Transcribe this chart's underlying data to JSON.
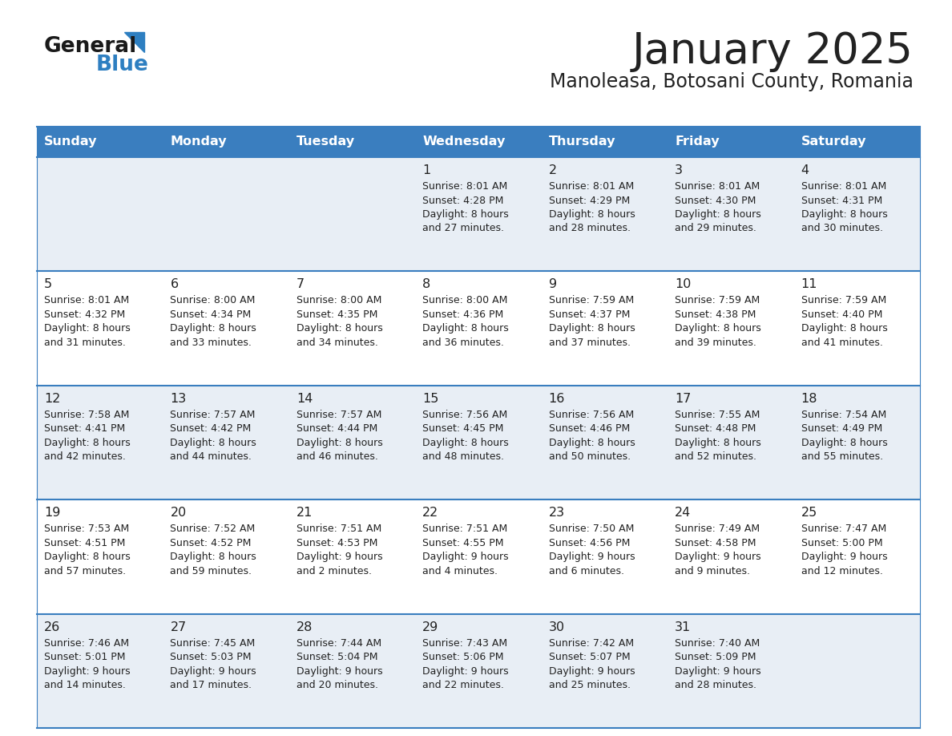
{
  "title": "January 2025",
  "subtitle": "Manoleasa, Botosani County, Romania",
  "header_bg_color": "#3a7ebf",
  "header_text_color": "#ffffff",
  "row_bg_even": "#e8eef5",
  "row_bg_odd": "#ffffff",
  "border_color": "#3a7ebf",
  "day_headers": [
    "Sunday",
    "Monday",
    "Tuesday",
    "Wednesday",
    "Thursday",
    "Friday",
    "Saturday"
  ],
  "title_color": "#222222",
  "subtitle_color": "#222222",
  "day_num_color": "#222222",
  "info_color": "#222222",
  "days": [
    {
      "row": 0,
      "col": 0,
      "num": "",
      "sunrise": "",
      "sunset": "",
      "daylight": ""
    },
    {
      "row": 0,
      "col": 1,
      "num": "",
      "sunrise": "",
      "sunset": "",
      "daylight": ""
    },
    {
      "row": 0,
      "col": 2,
      "num": "",
      "sunrise": "",
      "sunset": "",
      "daylight": ""
    },
    {
      "row": 0,
      "col": 3,
      "num": "1",
      "sunrise": "Sunrise: 8:01 AM",
      "sunset": "Sunset: 4:28 PM",
      "daylight": "Daylight: 8 hours\nand 27 minutes."
    },
    {
      "row": 0,
      "col": 4,
      "num": "2",
      "sunrise": "Sunrise: 8:01 AM",
      "sunset": "Sunset: 4:29 PM",
      "daylight": "Daylight: 8 hours\nand 28 minutes."
    },
    {
      "row": 0,
      "col": 5,
      "num": "3",
      "sunrise": "Sunrise: 8:01 AM",
      "sunset": "Sunset: 4:30 PM",
      "daylight": "Daylight: 8 hours\nand 29 minutes."
    },
    {
      "row": 0,
      "col": 6,
      "num": "4",
      "sunrise": "Sunrise: 8:01 AM",
      "sunset": "Sunset: 4:31 PM",
      "daylight": "Daylight: 8 hours\nand 30 minutes."
    },
    {
      "row": 1,
      "col": 0,
      "num": "5",
      "sunrise": "Sunrise: 8:01 AM",
      "sunset": "Sunset: 4:32 PM",
      "daylight": "Daylight: 8 hours\nand 31 minutes."
    },
    {
      "row": 1,
      "col": 1,
      "num": "6",
      "sunrise": "Sunrise: 8:00 AM",
      "sunset": "Sunset: 4:34 PM",
      "daylight": "Daylight: 8 hours\nand 33 minutes."
    },
    {
      "row": 1,
      "col": 2,
      "num": "7",
      "sunrise": "Sunrise: 8:00 AM",
      "sunset": "Sunset: 4:35 PM",
      "daylight": "Daylight: 8 hours\nand 34 minutes."
    },
    {
      "row": 1,
      "col": 3,
      "num": "8",
      "sunrise": "Sunrise: 8:00 AM",
      "sunset": "Sunset: 4:36 PM",
      "daylight": "Daylight: 8 hours\nand 36 minutes."
    },
    {
      "row": 1,
      "col": 4,
      "num": "9",
      "sunrise": "Sunrise: 7:59 AM",
      "sunset": "Sunset: 4:37 PM",
      "daylight": "Daylight: 8 hours\nand 37 minutes."
    },
    {
      "row": 1,
      "col": 5,
      "num": "10",
      "sunrise": "Sunrise: 7:59 AM",
      "sunset": "Sunset: 4:38 PM",
      "daylight": "Daylight: 8 hours\nand 39 minutes."
    },
    {
      "row": 1,
      "col": 6,
      "num": "11",
      "sunrise": "Sunrise: 7:59 AM",
      "sunset": "Sunset: 4:40 PM",
      "daylight": "Daylight: 8 hours\nand 41 minutes."
    },
    {
      "row": 2,
      "col": 0,
      "num": "12",
      "sunrise": "Sunrise: 7:58 AM",
      "sunset": "Sunset: 4:41 PM",
      "daylight": "Daylight: 8 hours\nand 42 minutes."
    },
    {
      "row": 2,
      "col": 1,
      "num": "13",
      "sunrise": "Sunrise: 7:57 AM",
      "sunset": "Sunset: 4:42 PM",
      "daylight": "Daylight: 8 hours\nand 44 minutes."
    },
    {
      "row": 2,
      "col": 2,
      "num": "14",
      "sunrise": "Sunrise: 7:57 AM",
      "sunset": "Sunset: 4:44 PM",
      "daylight": "Daylight: 8 hours\nand 46 minutes."
    },
    {
      "row": 2,
      "col": 3,
      "num": "15",
      "sunrise": "Sunrise: 7:56 AM",
      "sunset": "Sunset: 4:45 PM",
      "daylight": "Daylight: 8 hours\nand 48 minutes."
    },
    {
      "row": 2,
      "col": 4,
      "num": "16",
      "sunrise": "Sunrise: 7:56 AM",
      "sunset": "Sunset: 4:46 PM",
      "daylight": "Daylight: 8 hours\nand 50 minutes."
    },
    {
      "row": 2,
      "col": 5,
      "num": "17",
      "sunrise": "Sunrise: 7:55 AM",
      "sunset": "Sunset: 4:48 PM",
      "daylight": "Daylight: 8 hours\nand 52 minutes."
    },
    {
      "row": 2,
      "col": 6,
      "num": "18",
      "sunrise": "Sunrise: 7:54 AM",
      "sunset": "Sunset: 4:49 PM",
      "daylight": "Daylight: 8 hours\nand 55 minutes."
    },
    {
      "row": 3,
      "col": 0,
      "num": "19",
      "sunrise": "Sunrise: 7:53 AM",
      "sunset": "Sunset: 4:51 PM",
      "daylight": "Daylight: 8 hours\nand 57 minutes."
    },
    {
      "row": 3,
      "col": 1,
      "num": "20",
      "sunrise": "Sunrise: 7:52 AM",
      "sunset": "Sunset: 4:52 PM",
      "daylight": "Daylight: 8 hours\nand 59 minutes."
    },
    {
      "row": 3,
      "col": 2,
      "num": "21",
      "sunrise": "Sunrise: 7:51 AM",
      "sunset": "Sunset: 4:53 PM",
      "daylight": "Daylight: 9 hours\nand 2 minutes."
    },
    {
      "row": 3,
      "col": 3,
      "num": "22",
      "sunrise": "Sunrise: 7:51 AM",
      "sunset": "Sunset: 4:55 PM",
      "daylight": "Daylight: 9 hours\nand 4 minutes."
    },
    {
      "row": 3,
      "col": 4,
      "num": "23",
      "sunrise": "Sunrise: 7:50 AM",
      "sunset": "Sunset: 4:56 PM",
      "daylight": "Daylight: 9 hours\nand 6 minutes."
    },
    {
      "row": 3,
      "col": 5,
      "num": "24",
      "sunrise": "Sunrise: 7:49 AM",
      "sunset": "Sunset: 4:58 PM",
      "daylight": "Daylight: 9 hours\nand 9 minutes."
    },
    {
      "row": 3,
      "col": 6,
      "num": "25",
      "sunrise": "Sunrise: 7:47 AM",
      "sunset": "Sunset: 5:00 PM",
      "daylight": "Daylight: 9 hours\nand 12 minutes."
    },
    {
      "row": 4,
      "col": 0,
      "num": "26",
      "sunrise": "Sunrise: 7:46 AM",
      "sunset": "Sunset: 5:01 PM",
      "daylight": "Daylight: 9 hours\nand 14 minutes."
    },
    {
      "row": 4,
      "col": 1,
      "num": "27",
      "sunrise": "Sunrise: 7:45 AM",
      "sunset": "Sunset: 5:03 PM",
      "daylight": "Daylight: 9 hours\nand 17 minutes."
    },
    {
      "row": 4,
      "col": 2,
      "num": "28",
      "sunrise": "Sunrise: 7:44 AM",
      "sunset": "Sunset: 5:04 PM",
      "daylight": "Daylight: 9 hours\nand 20 minutes."
    },
    {
      "row": 4,
      "col": 3,
      "num": "29",
      "sunrise": "Sunrise: 7:43 AM",
      "sunset": "Sunset: 5:06 PM",
      "daylight": "Daylight: 9 hours\nand 22 minutes."
    },
    {
      "row": 4,
      "col": 4,
      "num": "30",
      "sunrise": "Sunrise: 7:42 AM",
      "sunset": "Sunset: 5:07 PM",
      "daylight": "Daylight: 9 hours\nand 25 minutes."
    },
    {
      "row": 4,
      "col": 5,
      "num": "31",
      "sunrise": "Sunrise: 7:40 AM",
      "sunset": "Sunset: 5:09 PM",
      "daylight": "Daylight: 9 hours\nand 28 minutes."
    },
    {
      "row": 4,
      "col": 6,
      "num": "",
      "sunrise": "",
      "sunset": "",
      "daylight": ""
    }
  ]
}
